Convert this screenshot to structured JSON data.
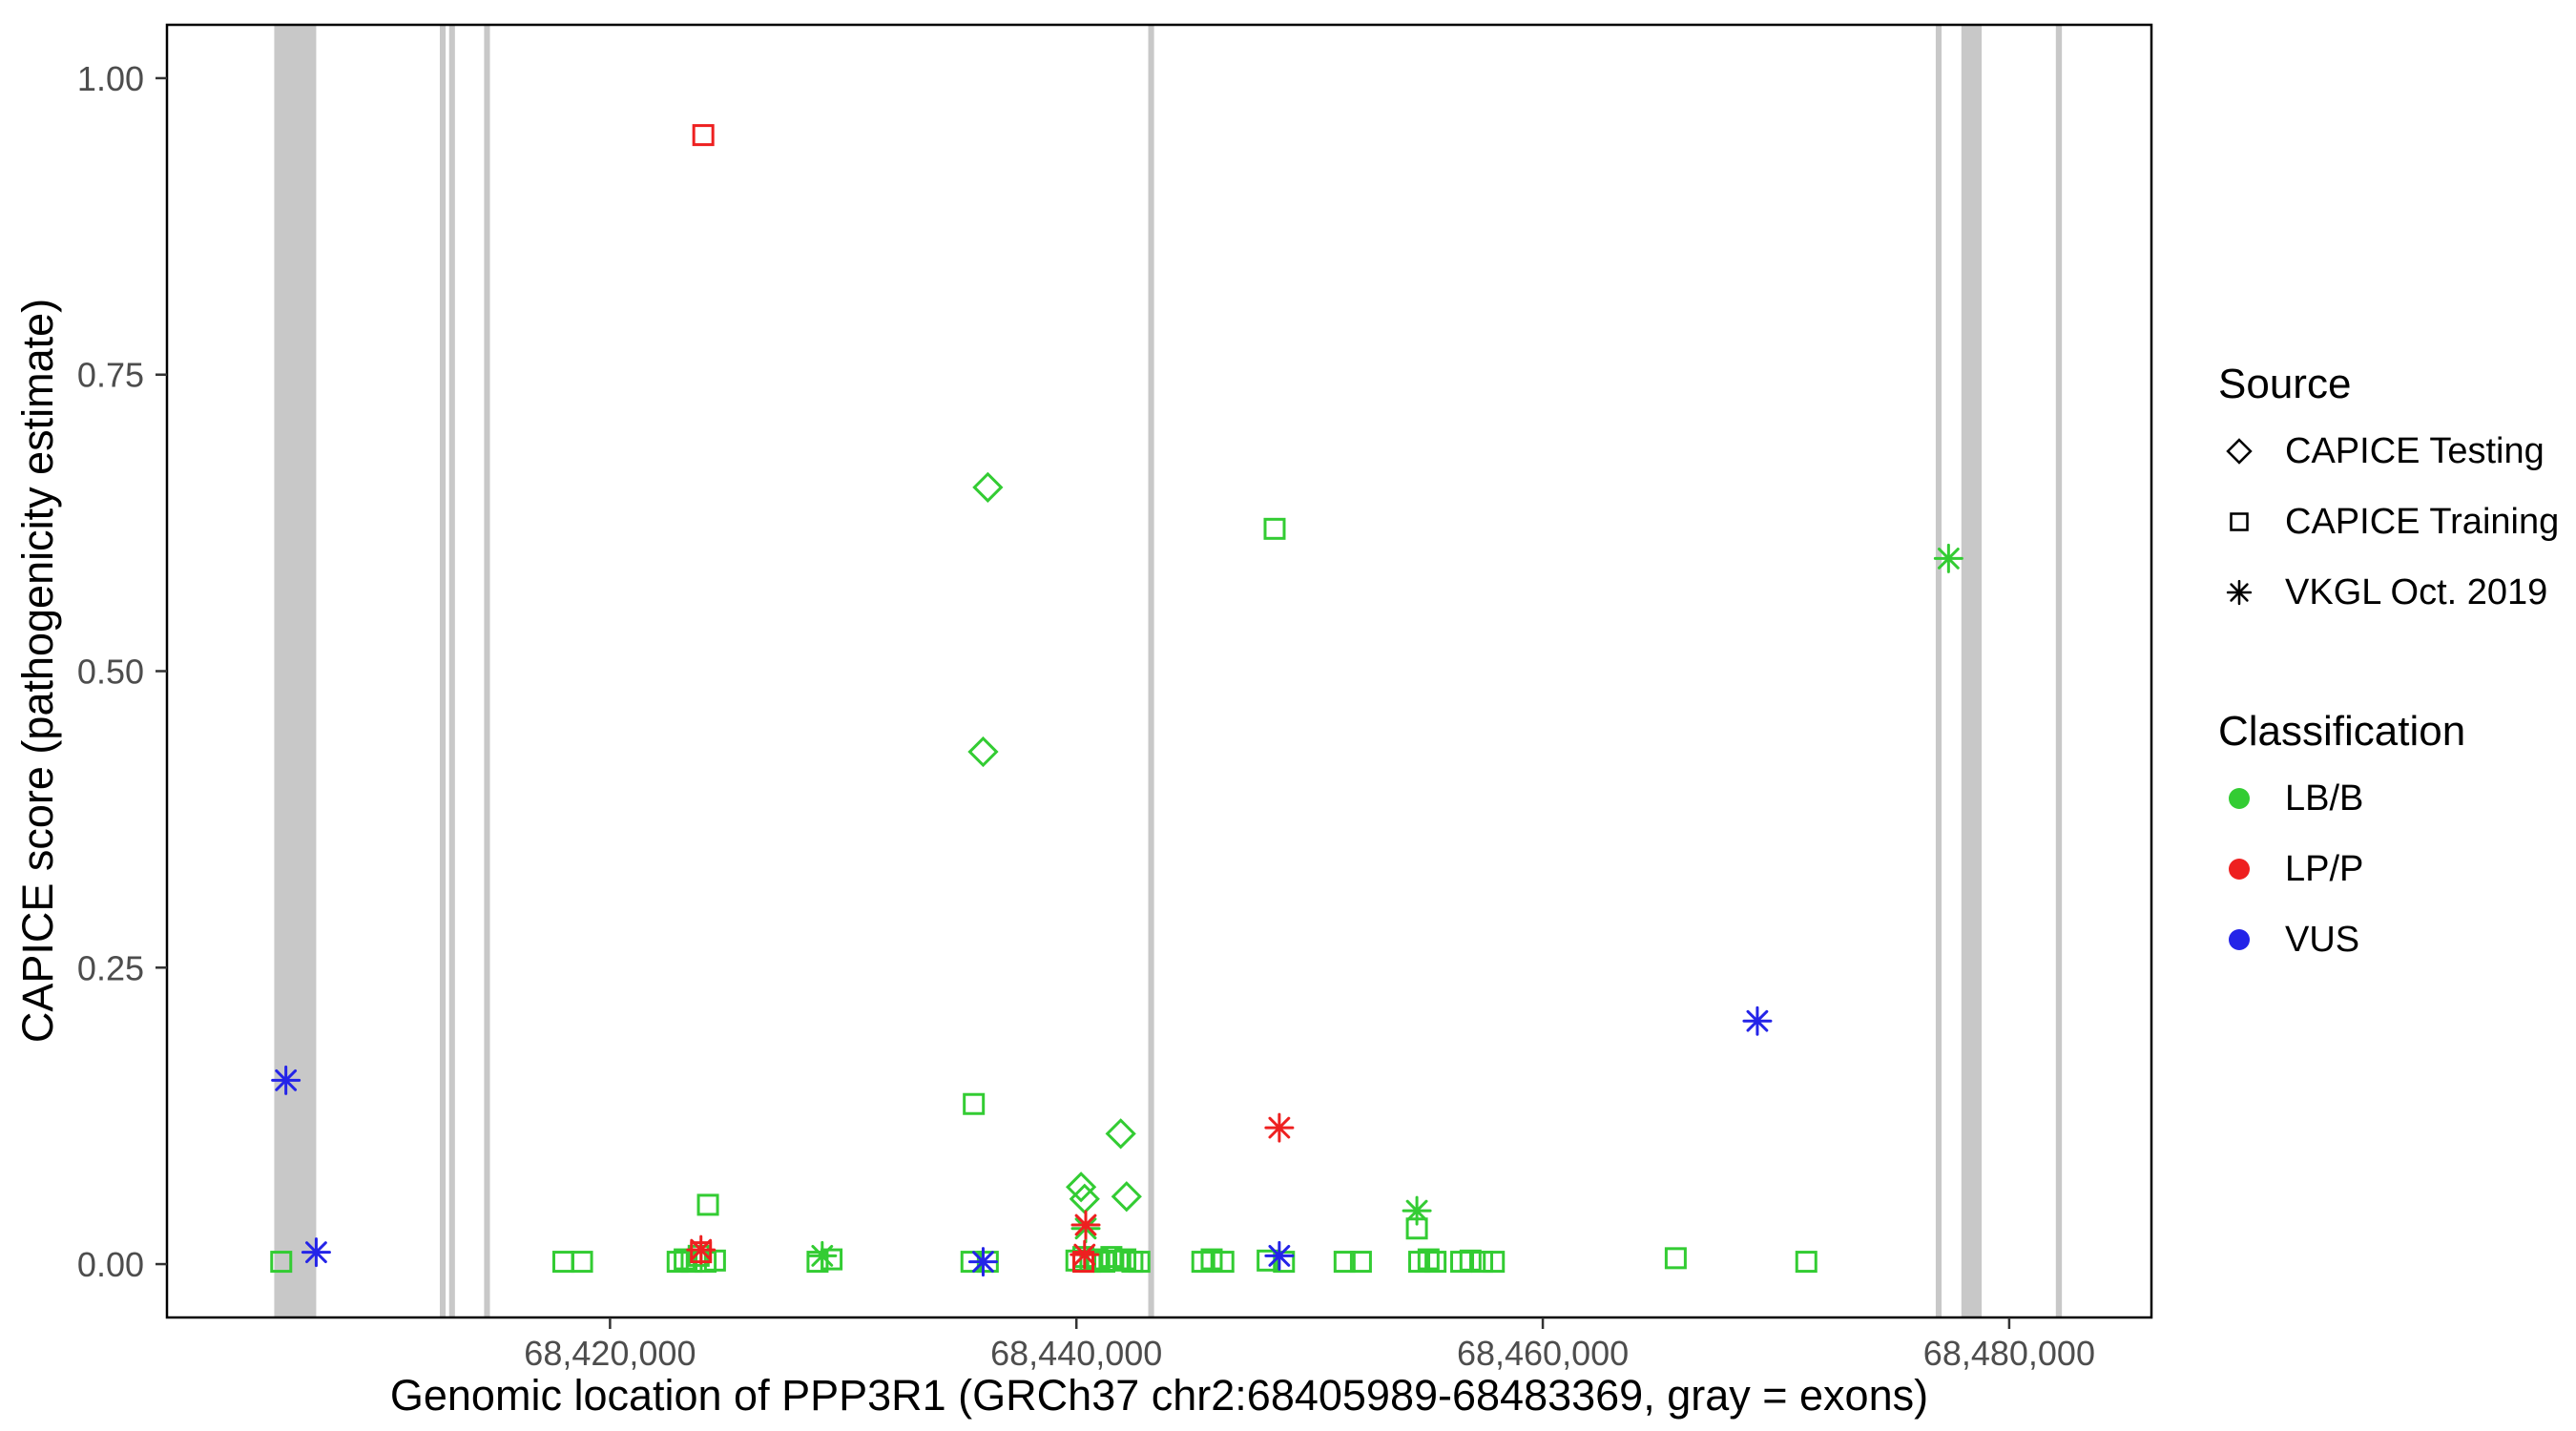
{
  "chart_data": {
    "type": "scatter",
    "title": "",
    "xlabel": "Genomic location of PPP3R1 (GRCh37 chr2:68405989-68483369, gray = exons)",
    "ylabel": "CAPICE score (pathogenicity estimate)",
    "xlim": [
      68401000,
      68486100
    ],
    "ylim": [
      -0.045,
      1.045
    ],
    "grid": "off",
    "legend_position": "right",
    "x_ticks": [
      {
        "value": 68420000,
        "label": "68,420,000"
      },
      {
        "value": 68440000,
        "label": "68,440,000"
      },
      {
        "value": 68460000,
        "label": "68,460,000"
      },
      {
        "value": 68480000,
        "label": "68,480,000"
      }
    ],
    "y_ticks": [
      {
        "value": 0.0,
        "label": "0.00"
      },
      {
        "value": 0.25,
        "label": "0.25"
      },
      {
        "value": 0.5,
        "label": "0.50"
      },
      {
        "value": 0.75,
        "label": "0.75"
      },
      {
        "value": 1.0,
        "label": "1.00"
      }
    ],
    "colors": {
      "lbb": "#33CC33",
      "lpp": "#EE2020",
      "vus": "#2424E8",
      "exon": "#C8C8C8",
      "tick": "#333333",
      "panel_border": "#000000"
    },
    "shape_by_source": {
      "testing": "diamond",
      "training": "square",
      "vkgl": "asterisk"
    },
    "legend": {
      "source_title": "Source",
      "source_items": [
        {
          "label": "CAPICE Testing",
          "marker": "diamond"
        },
        {
          "label": "CAPICE Training",
          "marker": "square"
        },
        {
          "label": "VKGL Oct. 2019",
          "marker": "asterisk"
        }
      ],
      "class_title": "Classification",
      "class_items": [
        {
          "label": "LB/B",
          "color_key": "lbb"
        },
        {
          "label": "LP/P",
          "color_key": "lpp"
        },
        {
          "label": "VUS",
          "color_key": "vus"
        }
      ]
    },
    "exons": [
      [
        68405600,
        68407400
      ],
      [
        68412700,
        68412950
      ],
      [
        68413100,
        68413350
      ],
      [
        68414600,
        68414850
      ],
      [
        68443080,
        68443330
      ],
      [
        68476850,
        68477100
      ],
      [
        68477950,
        68478820
      ],
      [
        68482000,
        68482260
      ]
    ],
    "points": [
      {
        "x": 68405900,
        "y": 0.002,
        "source": "training",
        "cls": "lbb"
      },
      {
        "x": 68418000,
        "y": 0.002,
        "source": "training",
        "cls": "lbb"
      },
      {
        "x": 68418800,
        "y": 0.002,
        "source": "training",
        "cls": "lbb"
      },
      {
        "x": 68422900,
        "y": 0.002,
        "source": "training",
        "cls": "lbb"
      },
      {
        "x": 68423200,
        "y": 0.004,
        "source": "training",
        "cls": "lbb"
      },
      {
        "x": 68423500,
        "y": 0.002,
        "source": "training",
        "cls": "lbb"
      },
      {
        "x": 68423800,
        "y": 0.007,
        "source": "training",
        "cls": "lbb"
      },
      {
        "x": 68424100,
        "y": 0.002,
        "source": "training",
        "cls": "lbb"
      },
      {
        "x": 68424200,
        "y": 0.05,
        "source": "training",
        "cls": "lbb"
      },
      {
        "x": 68424500,
        "y": 0.003,
        "source": "training",
        "cls": "lbb"
      },
      {
        "x": 68428900,
        "y": 0.002,
        "source": "training",
        "cls": "lbb"
      },
      {
        "x": 68429500,
        "y": 0.004,
        "source": "training",
        "cls": "lbb"
      },
      {
        "x": 68435500,
        "y": 0.002,
        "source": "training",
        "cls": "lbb"
      },
      {
        "x": 68435600,
        "y": 0.135,
        "source": "training",
        "cls": "lbb"
      },
      {
        "x": 68436200,
        "y": 0.002,
        "source": "training",
        "cls": "lbb"
      },
      {
        "x": 68440000,
        "y": 0.003,
        "source": "training",
        "cls": "lbb"
      },
      {
        "x": 68440300,
        "y": 0.006,
        "source": "training",
        "cls": "lbb"
      },
      {
        "x": 68440600,
        "y": 0.002,
        "source": "training",
        "cls": "lbb"
      },
      {
        "x": 68440900,
        "y": 0.004,
        "source": "training",
        "cls": "lbb"
      },
      {
        "x": 68441200,
        "y": 0.002,
        "source": "training",
        "cls": "lbb"
      },
      {
        "x": 68441500,
        "y": 0.006,
        "source": "training",
        "cls": "lbb"
      },
      {
        "x": 68441800,
        "y": 0.003,
        "source": "training",
        "cls": "lbb"
      },
      {
        "x": 68442100,
        "y": 0.004,
        "source": "training",
        "cls": "lbb"
      },
      {
        "x": 68442400,
        "y": 0.002,
        "source": "training",
        "cls": "lbb"
      },
      {
        "x": 68442700,
        "y": 0.002,
        "source": "training",
        "cls": "lbb"
      },
      {
        "x": 68445400,
        "y": 0.002,
        "source": "training",
        "cls": "lbb"
      },
      {
        "x": 68445800,
        "y": 0.004,
        "source": "training",
        "cls": "lbb"
      },
      {
        "x": 68446300,
        "y": 0.002,
        "source": "training",
        "cls": "lbb"
      },
      {
        "x": 68448200,
        "y": 0.003,
        "source": "training",
        "cls": "lbb"
      },
      {
        "x": 68448500,
        "y": 0.62,
        "source": "training",
        "cls": "lbb"
      },
      {
        "x": 68448900,
        "y": 0.002,
        "source": "training",
        "cls": "lbb"
      },
      {
        "x": 68451500,
        "y": 0.002,
        "source": "training",
        "cls": "lbb"
      },
      {
        "x": 68452200,
        "y": 0.002,
        "source": "training",
        "cls": "lbb"
      },
      {
        "x": 68454600,
        "y": 0.03,
        "source": "training",
        "cls": "lbb"
      },
      {
        "x": 68454700,
        "y": 0.002,
        "source": "training",
        "cls": "lbb"
      },
      {
        "x": 68455100,
        "y": 0.004,
        "source": "training",
        "cls": "lbb"
      },
      {
        "x": 68455400,
        "y": 0.002,
        "source": "training",
        "cls": "lbb"
      },
      {
        "x": 68456500,
        "y": 0.002,
        "source": "training",
        "cls": "lbb"
      },
      {
        "x": 68456900,
        "y": 0.003,
        "source": "training",
        "cls": "lbb"
      },
      {
        "x": 68457400,
        "y": 0.002,
        "source": "training",
        "cls": "lbb"
      },
      {
        "x": 68457900,
        "y": 0.002,
        "source": "training",
        "cls": "lbb"
      },
      {
        "x": 68465700,
        "y": 0.005,
        "source": "training",
        "cls": "lbb"
      },
      {
        "x": 68471300,
        "y": 0.002,
        "source": "training",
        "cls": "lbb"
      },
      {
        "x": 68424000,
        "y": 0.952,
        "source": "training",
        "cls": "lpp"
      },
      {
        "x": 68423900,
        "y": 0.01,
        "source": "training",
        "cls": "lpp"
      },
      {
        "x": 68440300,
        "y": 0.002,
        "source": "training",
        "cls": "lpp"
      },
      {
        "x": 68436200,
        "y": 0.655,
        "source": "testing",
        "cls": "lbb"
      },
      {
        "x": 68436000,
        "y": 0.432,
        "source": "testing",
        "cls": "lbb"
      },
      {
        "x": 68440200,
        "y": 0.065,
        "source": "testing",
        "cls": "lbb"
      },
      {
        "x": 68440350,
        "y": 0.055,
        "source": "testing",
        "cls": "lbb"
      },
      {
        "x": 68441900,
        "y": 0.11,
        "source": "testing",
        "cls": "lbb"
      },
      {
        "x": 68442150,
        "y": 0.057,
        "source": "testing",
        "cls": "lbb"
      },
      {
        "x": 68429100,
        "y": 0.007,
        "source": "vkgl",
        "cls": "lbb"
      },
      {
        "x": 68440400,
        "y": 0.03,
        "source": "vkgl",
        "cls": "lbb"
      },
      {
        "x": 68454600,
        "y": 0.045,
        "source": "vkgl",
        "cls": "lbb"
      },
      {
        "x": 68477400,
        "y": 0.595,
        "source": "vkgl",
        "cls": "lbb"
      },
      {
        "x": 68423900,
        "y": 0.012,
        "source": "vkgl",
        "cls": "lpp"
      },
      {
        "x": 68440400,
        "y": 0.033,
        "source": "vkgl",
        "cls": "lpp"
      },
      {
        "x": 68440350,
        "y": 0.008,
        "source": "vkgl",
        "cls": "lpp"
      },
      {
        "x": 68448700,
        "y": 0.115,
        "source": "vkgl",
        "cls": "lpp"
      },
      {
        "x": 68406100,
        "y": 0.155,
        "source": "vkgl",
        "cls": "vus"
      },
      {
        "x": 68407400,
        "y": 0.01,
        "source": "vkgl",
        "cls": "vus"
      },
      {
        "x": 68436000,
        "y": 0.002,
        "source": "vkgl",
        "cls": "vus"
      },
      {
        "x": 68448700,
        "y": 0.007,
        "source": "vkgl",
        "cls": "vus"
      },
      {
        "x": 68469200,
        "y": 0.205,
        "source": "vkgl",
        "cls": "vus"
      }
    ]
  }
}
